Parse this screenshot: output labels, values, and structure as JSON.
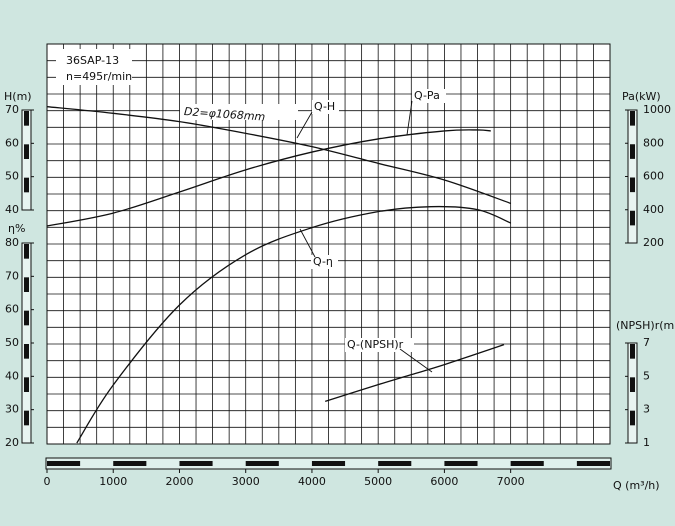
{
  "chart_data": {
    "type": "line",
    "annotations": [
      "36SAP-13",
      "n=495r/min",
      "D2=φ1068mm"
    ],
    "x_label": "Q (m³/h)",
    "xlim": [
      0,
      8500
    ],
    "xticks": [
      0,
      1000,
      2000,
      3000,
      4000,
      5000,
      6000,
      7000
    ],
    "axes": [
      {
        "label": "H(m)",
        "side": "left",
        "lim": [
          40,
          70
        ],
        "ticks": [
          40,
          50,
          60,
          70
        ]
      },
      {
        "label": "η%",
        "side": "left",
        "lim": [
          20,
          80
        ],
        "ticks": [
          20,
          30,
          40,
          50,
          60,
          70,
          80
        ]
      },
      {
        "label": "Pa(kW)",
        "side": "right",
        "lim": [
          200,
          1000
        ],
        "ticks": [
          200,
          400,
          600,
          800,
          1000
        ]
      },
      {
        "label": "(NPSH)r(m)",
        "side": "right",
        "lim": [
          1,
          7
        ],
        "ticks": [
          1,
          3,
          5,
          7
        ]
      }
    ],
    "series": [
      {
        "name": "Q-H",
        "axis": 0,
        "color": "#111111",
        "x": [
          0,
          1000,
          2000,
          3000,
          4000,
          5000,
          6000,
          7000
        ],
        "values": [
          71,
          69,
          66.5,
          63,
          59,
          54,
          49,
          42
        ]
      },
      {
        "name": "Q-Pa",
        "axis": 2,
        "color": "#111111",
        "x": [
          0,
          1000,
          2000,
          3000,
          4000,
          5000,
          6000,
          6500,
          6700
        ],
        "values": [
          302,
          380,
          507,
          640,
          747,
          826,
          874,
          880,
          874
        ]
      },
      {
        "name": "Q-η",
        "axis": 1,
        "color": "#111111",
        "x": [
          450,
          1000,
          2000,
          3000,
          4000,
          5000,
          5800,
          6500,
          7000
        ],
        "values": [
          20,
          37.4,
          61.4,
          76.5,
          84.6,
          89.4,
          90.9,
          90,
          86
        ]
      },
      {
        "name": "Q-(NPSH)r",
        "axis": 3,
        "color": "#111111",
        "x": [
          4200,
          5000,
          5500,
          6000,
          6900
        ],
        "values": [
          3.5,
          4.5,
          5.1,
          5.7,
          6.9
        ]
      }
    ]
  }
}
